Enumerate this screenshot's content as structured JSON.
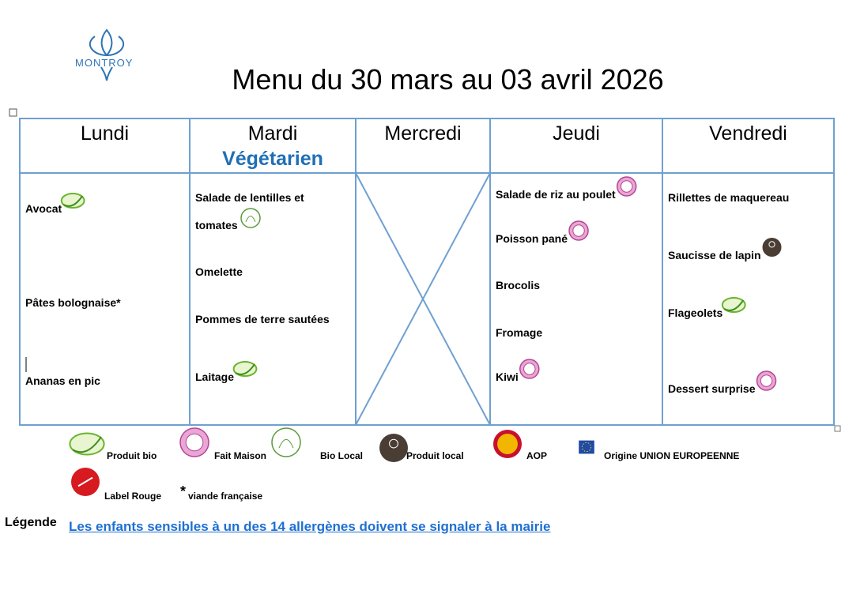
{
  "logo": {
    "text": "MONTROY"
  },
  "title": "Menu du 30 mars au 03 avril 2026",
  "days": [
    {
      "name": "Lundi",
      "items": [
        {
          "text": "Avocat",
          "icon": "bio"
        },
        {
          "text": "Pâtes bolognaise*"
        },
        {
          "text": "Ananas en pic"
        }
      ]
    },
    {
      "name": "Mardi",
      "subtitle": "Végétarien",
      "items": [
        {
          "text": "Salade de lentilles et tomates",
          "icon": "bio-local"
        },
        {
          "text": "Omelette"
        },
        {
          "text": "Pommes de terre sautées"
        },
        {
          "text": "Laitage",
          "icon": "bio"
        }
      ]
    },
    {
      "name": "Mercredi",
      "items": []
    },
    {
      "name": "Jeudi",
      "items": [
        {
          "text": "Salade de riz au poulet",
          "icon": "fait-maison"
        },
        {
          "text": "Poisson pané",
          "icon": "fait-maison"
        },
        {
          "text": "Brocolis"
        },
        {
          "text": "Fromage"
        },
        {
          "text": "Kiwi",
          "icon": "fait-maison"
        }
      ]
    },
    {
      "name": "Vendredi",
      "items": [
        {
          "text": "Rillettes de maquereau"
        },
        {
          "text": "Saucisse de lapin",
          "icon": "produit-local"
        },
        {
          "text": "Flageolets",
          "icon": "bio"
        },
        {
          "text": "Dessert surprise",
          "icon": "fait-maison"
        }
      ]
    }
  ],
  "legend": [
    {
      "label": "Produit bio",
      "icon": "bio"
    },
    {
      "label": "Fait Maison",
      "icon": "fait-maison"
    },
    {
      "label": "Bio Local",
      "icon": "bio-local"
    },
    {
      "label": "Produit local",
      "icon": "produit-local"
    },
    {
      "label": "AOP",
      "icon": "aop"
    },
    {
      "label": "Origine UNION EUROPEENNE",
      "icon": "ue"
    },
    {
      "label": "Label Rouge",
      "icon": "label-rouge"
    },
    {
      "label": "viande française",
      "symbol": "*"
    }
  ],
  "footer": {
    "heading": "Légende",
    "notice": "Les enfants sensibles à un des 14 allergènes doivent se signaler à la mairie"
  }
}
